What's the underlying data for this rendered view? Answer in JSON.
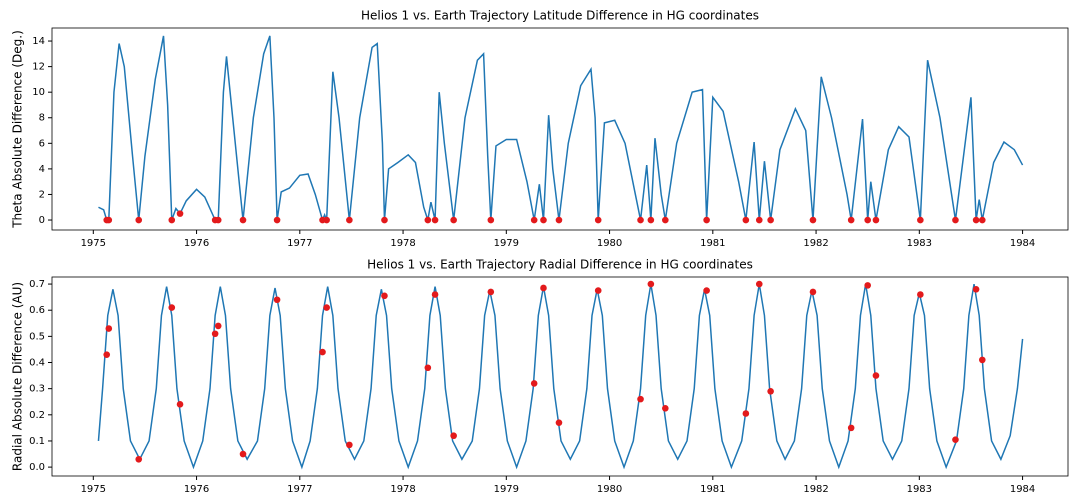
{
  "chart_data": [
    {
      "type": "line",
      "title": "Helios 1 vs. Earth Trajectory Latitude Difference in HG coordinates",
      "ylabel": "Theta Absolute Difference (Deg.)",
      "xlim": [
        1974.6,
        1984.44
      ],
      "xticks": [
        1975,
        1976,
        1977,
        1978,
        1979,
        1980,
        1981,
        1982,
        1983,
        1984
      ],
      "ylim": [
        -0.78,
        15.02
      ],
      "yticks": [
        0,
        2,
        4,
        6,
        8,
        10,
        12,
        14
      ],
      "grid": false,
      "series": [
        {
          "type": "line",
          "color": "#1f77b4",
          "x": [
            1975.05,
            1975.1,
            1975.13,
            1975.15,
            1975.2,
            1975.25,
            1975.3,
            1975.38,
            1975.44,
            1975.5,
            1975.6,
            1975.68,
            1975.72,
            1975.76,
            1975.8,
            1975.84,
            1975.9,
            1976.0,
            1976.08,
            1976.18,
            1976.21,
            1976.26,
            1976.29,
            1976.35,
            1976.45,
            1976.55,
            1976.65,
            1976.71,
            1976.75,
            1976.78,
            1976.82,
            1976.9,
            1977.0,
            1977.08,
            1977.15,
            1977.22,
            1977.24,
            1977.26,
            1977.32,
            1977.38,
            1977.48,
            1977.58,
            1977.7,
            1977.75,
            1977.8,
            1977.82,
            1977.86,
            1977.95,
            1978.05,
            1978.12,
            1978.2,
            1978.24,
            1978.27,
            1978.31,
            1978.35,
            1978.4,
            1978.49,
            1978.6,
            1978.72,
            1978.78,
            1978.82,
            1978.85,
            1978.9,
            1979.0,
            1979.1,
            1979.2,
            1979.27,
            1979.32,
            1979.36,
            1979.41,
            1979.45,
            1979.51,
            1979.6,
            1979.72,
            1979.82,
            1979.86,
            1979.89,
            1979.95,
            1980.05,
            1980.15,
            1980.3,
            1980.36,
            1980.4,
            1980.44,
            1980.5,
            1980.54,
            1980.65,
            1980.8,
            1980.9,
            1980.94,
            1981.0,
            1981.1,
            1981.25,
            1981.32,
            1981.4,
            1981.45,
            1981.5,
            1981.56,
            1981.65,
            1981.8,
            1981.9,
            1981.97,
            1982.05,
            1982.15,
            1982.3,
            1982.34,
            1982.45,
            1982.5,
            1982.53,
            1982.58,
            1982.7,
            1982.8,
            1982.9,
            1983.01,
            1983.08,
            1983.2,
            1983.35,
            1983.5,
            1983.55,
            1983.58,
            1983.61,
            1983.72,
            1983.82,
            1983.92,
            1984.0
          ],
          "values": [
            1.0,
            0.8,
            0,
            0,
            10,
            13.8,
            12,
            5,
            0,
            5,
            11,
            14.4,
            9,
            0,
            0.9,
            0.5,
            1.5,
            2.4,
            1.8,
            0,
            0,
            10,
            12.8,
            8,
            0,
            8,
            13,
            14.4,
            8,
            0,
            2.2,
            2.5,
            3.5,
            3.6,
            2,
            0,
            0.4,
            0,
            11.6,
            8,
            0,
            8,
            13.5,
            13.8,
            6,
            0,
            4,
            4.5,
            5.1,
            4.5,
            1,
            0,
            1.4,
            0,
            10,
            6,
            0,
            8,
            12.5,
            13,
            5,
            0,
            5.8,
            6.3,
            6.3,
            3,
            0,
            2.8,
            0,
            8.2,
            4,
            0,
            6,
            10.5,
            11.8,
            8,
            0,
            7.6,
            7.8,
            6,
            0,
            4.3,
            0,
            6.4,
            2,
            0,
            6,
            10,
            10.2,
            0,
            9.6,
            8.5,
            3,
            0,
            6.1,
            0,
            4.6,
            0,
            5.5,
            8.7,
            7,
            0,
            11.2,
            8,
            2,
            0,
            7.9,
            0,
            3,
            0,
            5.5,
            7.3,
            6.5,
            0,
            12.5,
            8,
            0,
            9.6,
            0,
            1.6,
            0,
            4.5,
            6.1,
            5.5,
            4.3
          ]
        },
        {
          "type": "scatter",
          "color": "#e31a1c",
          "x": [
            1975.13,
            1975.15,
            1975.44,
            1975.76,
            1975.84,
            1976.18,
            1976.21,
            1976.45,
            1976.78,
            1977.22,
            1977.26,
            1977.48,
            1977.82,
            1978.24,
            1978.31,
            1978.49,
            1978.85,
            1979.27,
            1979.36,
            1979.51,
            1979.89,
            1980.3,
            1980.4,
            1980.54,
            1980.94,
            1981.32,
            1981.45,
            1981.56,
            1981.97,
            1982.34,
            1982.5,
            1982.58,
            1983.01,
            1983.35,
            1983.55,
            1983.61
          ],
          "values": [
            0,
            0,
            0,
            0,
            0.5,
            0,
            0,
            0,
            0,
            0,
            0,
            0,
            0,
            0,
            0,
            0,
            0,
            0,
            0,
            0,
            0,
            0,
            0,
            0,
            0,
            0,
            0,
            0,
            0,
            0,
            0,
            0,
            0,
            0,
            0,
            0
          ]
        }
      ]
    },
    {
      "type": "line",
      "title": "Helios 1 vs. Earth Trajectory Radial Difference in HG coordinates",
      "ylabel": "Radial Absolute Difference (AU)",
      "xlim": [
        1974.6,
        1984.44
      ],
      "xticks": [
        1975,
        1976,
        1977,
        1978,
        1979,
        1980,
        1981,
        1982,
        1983,
        1984
      ],
      "ylim": [
        -0.034,
        0.727
      ],
      "yticks": [
        {
          "value": 0,
          "label": "0.0"
        },
        0.1,
        0.2,
        0.3,
        0.4,
        0.5,
        0.6,
        0.7
      ],
      "grid": false,
      "series": [
        {
          "type": "line",
          "color": "#1f77b4",
          "x": [
            1975.05,
            1975.09,
            1975.14,
            1975.19,
            1975.24,
            1975.29,
            1975.36,
            1975.45,
            1975.54,
            1975.61,
            1975.66,
            1975.71,
            1975.76,
            1975.81,
            1975.88,
            1975.97,
            1976.06,
            1976.13,
            1976.18,
            1976.23,
            1976.28,
            1976.33,
            1976.4,
            1976.49,
            1976.59,
            1976.66,
            1976.71,
            1976.76,
            1976.81,
            1976.86,
            1976.93,
            1977.02,
            1977.1,
            1977.17,
            1977.22,
            1977.27,
            1977.32,
            1977.37,
            1977.44,
            1977.53,
            1977.62,
            1977.69,
            1977.74,
            1977.79,
            1977.84,
            1977.89,
            1977.96,
            1978.05,
            1978.14,
            1978.21,
            1978.26,
            1978.31,
            1978.36,
            1978.41,
            1978.48,
            1978.57,
            1978.67,
            1978.74,
            1978.79,
            1978.84,
            1978.89,
            1978.94,
            1979.01,
            1979.1,
            1979.19,
            1979.26,
            1979.31,
            1979.36,
            1979.41,
            1979.46,
            1979.53,
            1979.62,
            1979.71,
            1979.78,
            1979.83,
            1979.88,
            1979.93,
            1979.98,
            1980.05,
            1980.14,
            1980.23,
            1980.3,
            1980.35,
            1980.4,
            1980.45,
            1980.5,
            1980.57,
            1980.66,
            1980.75,
            1980.82,
            1980.87,
            1980.92,
            1980.97,
            1981.02,
            1981.09,
            1981.18,
            1981.28,
            1981.35,
            1981.4,
            1981.45,
            1981.5,
            1981.55,
            1981.62,
            1981.7,
            1981.79,
            1981.86,
            1981.91,
            1981.96,
            1982.01,
            1982.06,
            1982.13,
            1982.22,
            1982.31,
            1982.38,
            1982.43,
            1982.48,
            1982.53,
            1982.58,
            1982.65,
            1982.74,
            1982.83,
            1982.9,
            1982.95,
            1983.0,
            1983.05,
            1983.1,
            1983.17,
            1983.26,
            1983.36,
            1983.43,
            1983.48,
            1983.53,
            1983.58,
            1983.63,
            1983.7,
            1983.79,
            1983.88,
            1983.95,
            1984.0
          ],
          "values": [
            0.1,
            0.3,
            0.58,
            0.68,
            0.58,
            0.3,
            0.1,
            0.03,
            0.1,
            0.3,
            0.58,
            0.69,
            0.58,
            0.3,
            0.1,
            0,
            0.1,
            0.3,
            0.58,
            0.69,
            0.58,
            0.3,
            0.1,
            0.03,
            0.1,
            0.3,
            0.58,
            0.685,
            0.58,
            0.3,
            0.1,
            0,
            0.1,
            0.3,
            0.58,
            0.69,
            0.58,
            0.3,
            0.1,
            0.03,
            0.1,
            0.3,
            0.58,
            0.68,
            0.58,
            0.3,
            0.1,
            0,
            0.1,
            0.3,
            0.58,
            0.69,
            0.58,
            0.3,
            0.1,
            0.03,
            0.1,
            0.3,
            0.58,
            0.675,
            0.58,
            0.3,
            0.1,
            0,
            0.1,
            0.3,
            0.58,
            0.69,
            0.58,
            0.3,
            0.1,
            0.03,
            0.1,
            0.3,
            0.58,
            0.68,
            0.58,
            0.3,
            0.1,
            0,
            0.1,
            0.3,
            0.58,
            0.7,
            0.58,
            0.3,
            0.1,
            0.03,
            0.1,
            0.3,
            0.58,
            0.68,
            0.58,
            0.3,
            0.1,
            0,
            0.1,
            0.3,
            0.58,
            0.7,
            0.58,
            0.3,
            0.1,
            0.03,
            0.1,
            0.3,
            0.58,
            0.675,
            0.58,
            0.3,
            0.1,
            0,
            0.1,
            0.3,
            0.58,
            0.7,
            0.58,
            0.3,
            0.1,
            0.03,
            0.1,
            0.3,
            0.58,
            0.665,
            0.58,
            0.3,
            0.1,
            0,
            0.1,
            0.3,
            0.58,
            0.7,
            0.58,
            0.3,
            0.1,
            0.03,
            0.12,
            0.3,
            0.49
          ]
        },
        {
          "type": "scatter",
          "color": "#e31a1c",
          "x": [
            1975.13,
            1975.15,
            1975.44,
            1975.76,
            1975.84,
            1976.18,
            1976.21,
            1976.45,
            1976.78,
            1977.22,
            1977.26,
            1977.48,
            1977.82,
            1978.24,
            1978.31,
            1978.49,
            1978.85,
            1979.27,
            1979.36,
            1979.51,
            1979.89,
            1980.3,
            1980.4,
            1980.54,
            1980.94,
            1981.32,
            1981.45,
            1981.56,
            1981.97,
            1982.34,
            1982.5,
            1982.58,
            1983.01,
            1983.35,
            1983.55,
            1983.61
          ],
          "values": [
            0.43,
            0.53,
            0.03,
            0.61,
            0.24,
            0.51,
            0.54,
            0.05,
            0.64,
            0.44,
            0.61,
            0.085,
            0.655,
            0.38,
            0.66,
            0.12,
            0.67,
            0.32,
            0.685,
            0.17,
            0.675,
            0.26,
            0.7,
            0.225,
            0.675,
            0.205,
            0.7,
            0.29,
            0.67,
            0.15,
            0.695,
            0.35,
            0.66,
            0.105,
            0.68,
            0.41
          ]
        }
      ]
    }
  ]
}
